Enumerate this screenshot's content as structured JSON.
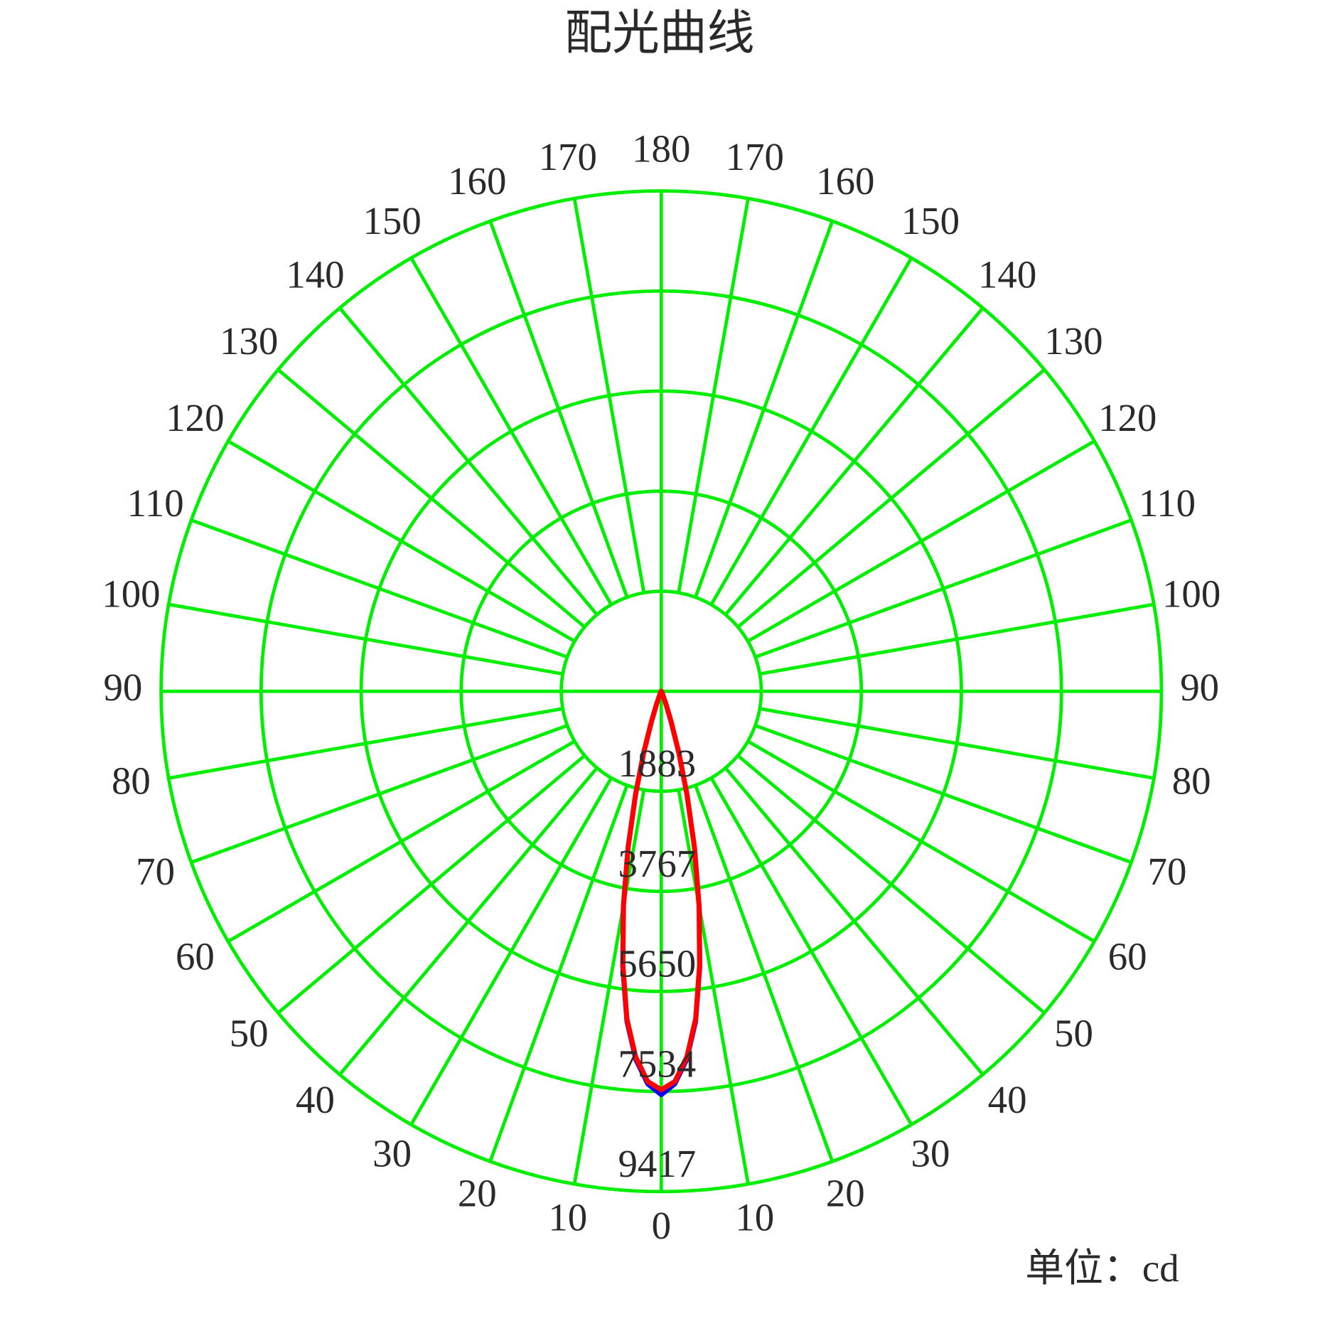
{
  "chart_data": {
    "type": "polar",
    "title": "配光曲线",
    "unit_label": "单位：cd",
    "rlim": [
      0,
      9417
    ],
    "rticks": [
      1883,
      3767,
      5650,
      7534,
      9417
    ],
    "angle_ticks": [
      0,
      10,
      20,
      30,
      40,
      50,
      60,
      70,
      80,
      90,
      100,
      110,
      120,
      130,
      140,
      150,
      160,
      170,
      180
    ],
    "grid_color": "#00ee00",
    "x": [
      -30,
      -25,
      -20,
      -18,
      -16,
      -14,
      -12,
      -10,
      -8,
      -6,
      -4,
      -2,
      0,
      2,
      4,
      6,
      8,
      10,
      12,
      14,
      16,
      18,
      20,
      25,
      30
    ],
    "series": [
      {
        "color": "#0000ff",
        "values": [
          0,
          60,
          280,
          650,
          1250,
          2050,
          3050,
          4150,
          5250,
          6250,
          6950,
          7400,
          7600,
          7400,
          6950,
          6250,
          5250,
          4150,
          3050,
          2050,
          1250,
          650,
          280,
          60,
          0
        ]
      },
      {
        "color": "#ff0000",
        "values": [
          0,
          50,
          250,
          600,
          1200,
          2000,
          3000,
          4100,
          5200,
          6200,
          6900,
          7350,
          7500,
          7350,
          6900,
          6200,
          5200,
          4100,
          3000,
          2000,
          1200,
          600,
          250,
          50,
          0
        ]
      }
    ]
  }
}
